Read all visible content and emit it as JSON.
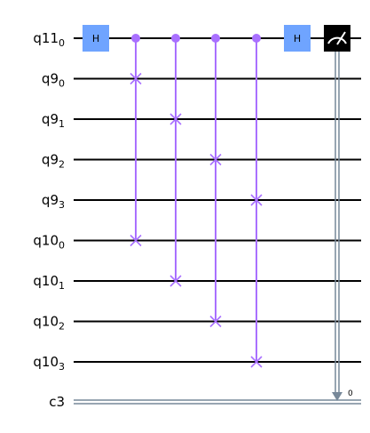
{
  "circuit": {
    "qubits": [
      {
        "name": "q11",
        "index": "0"
      },
      {
        "name": "q9",
        "index": "0"
      },
      {
        "name": "q9",
        "index": "1"
      },
      {
        "name": "q9",
        "index": "2"
      },
      {
        "name": "q9",
        "index": "3"
      },
      {
        "name": "q10",
        "index": "0"
      },
      {
        "name": "q10",
        "index": "1"
      },
      {
        "name": "q10",
        "index": "2"
      },
      {
        "name": "q10",
        "index": "3"
      }
    ],
    "classical": {
      "name": "c3",
      "bit_index": "0"
    },
    "gates": [
      {
        "type": "h",
        "label": "H",
        "qubit": 0,
        "column": 0
      },
      {
        "type": "cswap",
        "control": 0,
        "targets": [
          1,
          5
        ],
        "column": 1
      },
      {
        "type": "cswap",
        "control": 0,
        "targets": [
          2,
          6
        ],
        "column": 2
      },
      {
        "type": "cswap",
        "control": 0,
        "targets": [
          3,
          7
        ],
        "column": 3
      },
      {
        "type": "cswap",
        "control": 0,
        "targets": [
          4,
          8
        ],
        "column": 4
      },
      {
        "type": "h",
        "label": "H",
        "qubit": 0,
        "column": 5
      },
      {
        "type": "measure",
        "qubit": 0,
        "clbit": 0,
        "column": 6
      }
    ],
    "colors": {
      "h_gate": "#6fa4ff",
      "controlled_swap": "#a970ff",
      "measure_box": "#000000",
      "measure_link": "#778899",
      "wire": "#000000"
    }
  }
}
